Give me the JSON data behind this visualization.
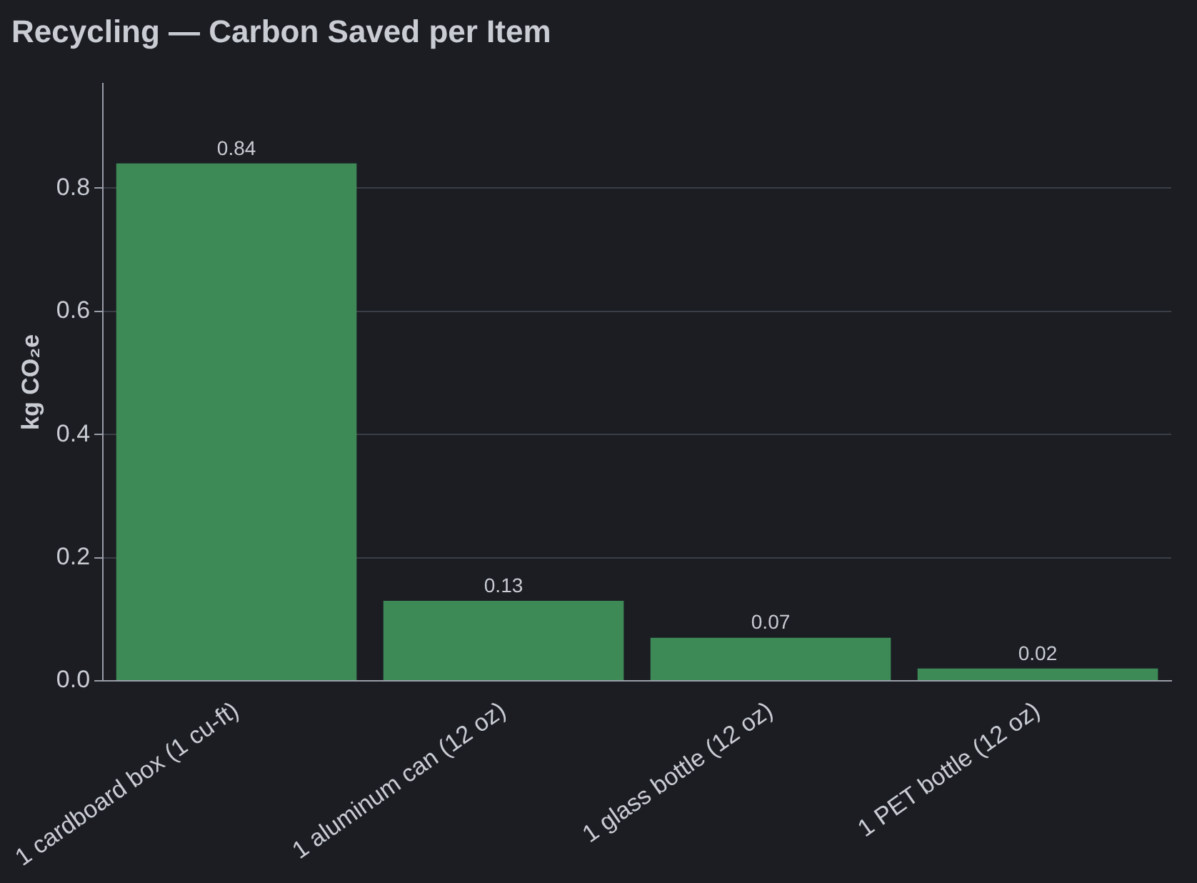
{
  "chart_data": {
    "type": "bar",
    "title": "Recycling — Carbon Saved per Item",
    "ylabel": "kg CO₂e",
    "categories": [
      "1 cardboard box (1 cu-ft)",
      "1 aluminum can (12 oz)",
      "1 glass bottle (12 oz)",
      "1 PET bottle (12 oz)"
    ],
    "values": [
      0.84,
      0.13,
      0.07,
      0.02
    ],
    "color": "#3d8a56",
    "ylim": [
      0,
      0.97
    ],
    "yticks": [
      {
        "value": 0,
        "label": "0.0"
      },
      0.2,
      0.4,
      0.6,
      0.8
    ],
    "grid": "y",
    "data_labels": true,
    "legend": false
  }
}
